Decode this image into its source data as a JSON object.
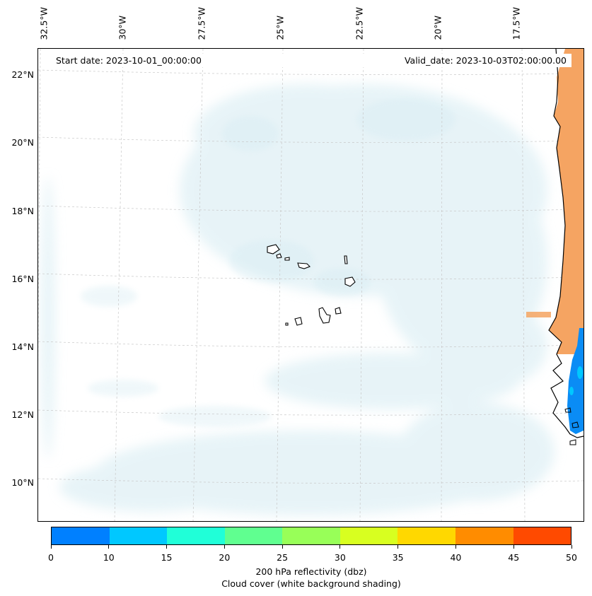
{
  "map": {
    "start_date": "Start date: 2023-10-01_00:00:00",
    "valid_date": "Valid_date: 2023-10-03T02:00:00.00",
    "lon_labels": [
      "32.5°W",
      "30°W",
      "27.5°W",
      "25°W",
      "22.5°W",
      "20°W",
      "17.5°W"
    ],
    "lat_labels": [
      "22°N",
      "20°N",
      "18°N",
      "16°N",
      "14°N",
      "12°N",
      "10°N"
    ],
    "land_color": "#f5a462",
    "echo_color": "#0a8cf5",
    "cloud_color": "#d4ebf2"
  },
  "colorbar": {
    "ticks": [
      "0",
      "10",
      "15",
      "20",
      "25",
      "30",
      "35",
      "40",
      "45",
      "50"
    ],
    "colors": [
      "#0080ff",
      "#00c8ff",
      "#20ffd8",
      "#60ff90",
      "#98ff58",
      "#d8ff20",
      "#ffd800",
      "#ff8c00",
      "#ff4a00"
    ],
    "title": "200 hPa reflectivity (dbz)",
    "subtitle": "Cloud cover (white background shading)"
  }
}
